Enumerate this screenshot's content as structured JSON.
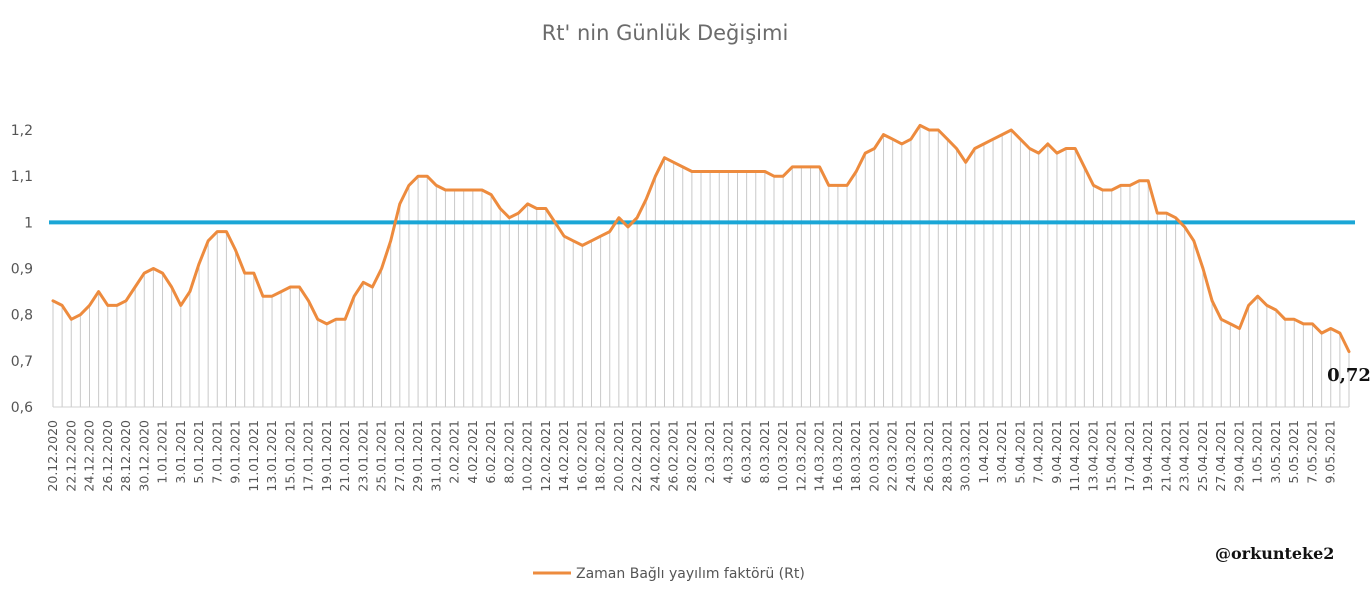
{
  "chart_data": {
    "type": "line",
    "title": "Rt' nin Günlük Değişimi",
    "ylim": [
      0.6,
      1.2
    ],
    "yticks": [
      "0,6",
      "0,7",
      "0,8",
      "0,9",
      "1",
      "1,1",
      "1,2"
    ],
    "reference_line": {
      "value": 1,
      "color": "#1ba6d6"
    },
    "x_labels": [
      "20.12.2020",
      "22.12.2020",
      "24.12.2020",
      "26.12.2020",
      "28.12.2020",
      "30.12.2020",
      "1.01.2021",
      "3.01.2021",
      "5.01.2021",
      "7.01.2021",
      "9.01.2021",
      "11.01.2021",
      "13.01.2021",
      "15.01.2021",
      "17.01.2021",
      "19.01.2021",
      "21.01.2021",
      "23.01.2021",
      "25.01.2021",
      "27.01.2021",
      "29.01.2021",
      "31.01.2021",
      "2.02.2021",
      "4.02.2021",
      "6.02.2021",
      "8.02.2021",
      "10.02.2021",
      "12.02.2021",
      "14.02.2021",
      "16.02.2021",
      "18.02.2021",
      "20.02.2021",
      "22.02.2021",
      "24.02.2021",
      "26.02.2021",
      "28.02.2021",
      "2.03.2021",
      "4.03.2021",
      "6.03.2021",
      "8.03.2021",
      "10.03.2021",
      "12.03.2021",
      "14.03.2021",
      "16.03.2021",
      "18.03.2021",
      "20.03.2021",
      "22.03.2021",
      "24.03.2021",
      "26.03.2021",
      "28.03.2021",
      "30.03.2021",
      "1.04.2021",
      "3.04.2021",
      "5.04.2021",
      "7.04.2021",
      "9.04.2021",
      "11.04.2021",
      "13.04.2021",
      "15.04.2021",
      "17.04.2021",
      "19.04.2021",
      "21.04.2021",
      "23.04.2021",
      "25.04.2021",
      "27.04.2021",
      "29.04.2021",
      "1.05.2021",
      "3.05.2021",
      "5.05.2021",
      "7.05.2021",
      "9.05.2021"
    ],
    "series": [
      {
        "name": "Zaman Bağlı yayılım faktörü (Rt)",
        "color": "#ed8b3e",
        "values": [
          0.83,
          0.82,
          0.79,
          0.8,
          0.82,
          0.85,
          0.82,
          0.82,
          0.83,
          0.86,
          0.89,
          0.9,
          0.89,
          0.86,
          0.82,
          0.85,
          0.91,
          0.96,
          0.98,
          0.98,
          0.94,
          0.89,
          0.89,
          0.84,
          0.84,
          0.85,
          0.86,
          0.86,
          0.83,
          0.79,
          0.78,
          0.79,
          0.79,
          0.84,
          0.87,
          0.86,
          0.9,
          0.96,
          1.04,
          1.08,
          1.1,
          1.1,
          1.08,
          1.07,
          1.07,
          1.07,
          1.07,
          1.07,
          1.06,
          1.03,
          1.01,
          1.02,
          1.04,
          1.03,
          1.03,
          1.0,
          0.97,
          0.96,
          0.95,
          0.96,
          0.97,
          0.98,
          1.01,
          0.99,
          1.01,
          1.05,
          1.1,
          1.14,
          1.13,
          1.12,
          1.11,
          1.11,
          1.11,
          1.11,
          1.11,
          1.11,
          1.11,
          1.11,
          1.11,
          1.1,
          1.1,
          1.12,
          1.12,
          1.12,
          1.12,
          1.08,
          1.08,
          1.08,
          1.11,
          1.15,
          1.16,
          1.19,
          1.18,
          1.17,
          1.18,
          1.21,
          1.2,
          1.2,
          1.18,
          1.16,
          1.13,
          1.16,
          1.17,
          1.18,
          1.19,
          1.2,
          1.18,
          1.16,
          1.15,
          1.17,
          1.15,
          1.16,
          1.16,
          1.12,
          1.08,
          1.07,
          1.07,
          1.08,
          1.08,
          1.09,
          1.09,
          1.02,
          1.02,
          1.01,
          0.99,
          0.96,
          0.9,
          0.83,
          0.79,
          0.78,
          0.77,
          0.82,
          0.84,
          0.82,
          0.81,
          0.79,
          0.79,
          0.78,
          0.78,
          0.76,
          0.77,
          0.76,
          0.72
        ]
      }
    ],
    "last_value_label": "0,72",
    "legend_position": "bottom",
    "grid": false
  },
  "watermark": "@orkunteke2"
}
